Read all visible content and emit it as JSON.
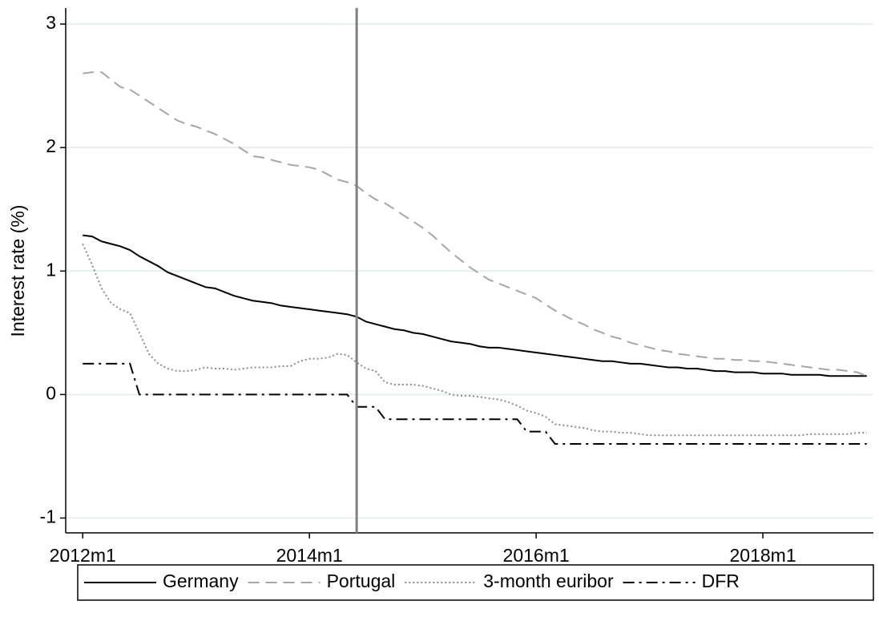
{
  "chart_data": {
    "type": "line",
    "y_label": "Interest rate (%)",
    "x": [
      624,
      625,
      626,
      627,
      628,
      629,
      630,
      631,
      632,
      633,
      634,
      635,
      636,
      637,
      638,
      639,
      640,
      641,
      642,
      643,
      644,
      645,
      646,
      647,
      648,
      649,
      650,
      651,
      652,
      653,
      654,
      655,
      656,
      657,
      658,
      659,
      660,
      661,
      662,
      663,
      664,
      665,
      666,
      667,
      668,
      669,
      670,
      671,
      672,
      673,
      674,
      675,
      676,
      677,
      678,
      679,
      680,
      681,
      682,
      683,
      684,
      685,
      686,
      687,
      688,
      689,
      690,
      691,
      692,
      693,
      694,
      695,
      696,
      697,
      698,
      699,
      700,
      701,
      702,
      703,
      704,
      705,
      706,
      707
    ],
    "xlim": [
      622.2,
      707.7
    ],
    "xticks": [
      {
        "value": 624,
        "label": "2012m1"
      },
      {
        "value": 648,
        "label": "2014m1"
      },
      {
        "value": 672,
        "label": "2016m1"
      },
      {
        "value": 696,
        "label": "2018m1"
      }
    ],
    "ylim": [
      -1.12,
      3.13
    ],
    "yticks": [
      -1,
      0,
      1,
      2,
      3
    ],
    "grid": true,
    "vline": 653,
    "vline_color": "#808080",
    "series": [
      {
        "name": "Germany",
        "color": "#000000",
        "style": "solid",
        "values": [
          1.29,
          1.28,
          1.24,
          1.22,
          1.2,
          1.17,
          1.12,
          1.08,
          1.04,
          0.99,
          0.96,
          0.93,
          0.9,
          0.87,
          0.86,
          0.83,
          0.8,
          0.78,
          0.76,
          0.75,
          0.74,
          0.72,
          0.71,
          0.7,
          0.69,
          0.68,
          0.67,
          0.66,
          0.65,
          0.63,
          0.59,
          0.57,
          0.55,
          0.53,
          0.52,
          0.5,
          0.49,
          0.47,
          0.45,
          0.43,
          0.42,
          0.41,
          0.39,
          0.38,
          0.38,
          0.37,
          0.36,
          0.35,
          0.34,
          0.33,
          0.32,
          0.31,
          0.3,
          0.29,
          0.28,
          0.27,
          0.27,
          0.26,
          0.25,
          0.25,
          0.24,
          0.23,
          0.22,
          0.22,
          0.21,
          0.21,
          0.2,
          0.19,
          0.19,
          0.18,
          0.18,
          0.18,
          0.17,
          0.17,
          0.17,
          0.16,
          0.16,
          0.16,
          0.16,
          0.15,
          0.15,
          0.15,
          0.15,
          0.15
        ]
      },
      {
        "name": "Portugal",
        "color": "#a6a6a6",
        "style": "dash",
        "values": [
          2.6,
          2.61,
          2.61,
          2.55,
          2.49,
          2.47,
          2.42,
          2.37,
          2.32,
          2.27,
          2.22,
          2.19,
          2.17,
          2.14,
          2.11,
          2.07,
          2.03,
          1.98,
          1.93,
          1.92,
          1.9,
          1.88,
          1.86,
          1.85,
          1.84,
          1.82,
          1.78,
          1.74,
          1.72,
          1.69,
          1.63,
          1.58,
          1.55,
          1.5,
          1.45,
          1.4,
          1.35,
          1.29,
          1.22,
          1.15,
          1.09,
          1.03,
          0.98,
          0.93,
          0.9,
          0.87,
          0.84,
          0.81,
          0.78,
          0.73,
          0.68,
          0.64,
          0.6,
          0.57,
          0.53,
          0.5,
          0.47,
          0.45,
          0.42,
          0.4,
          0.38,
          0.36,
          0.35,
          0.33,
          0.32,
          0.31,
          0.3,
          0.29,
          0.29,
          0.28,
          0.28,
          0.27,
          0.27,
          0.26,
          0.25,
          0.24,
          0.23,
          0.22,
          0.21,
          0.2,
          0.2,
          0.19,
          0.18,
          0.15
        ]
      },
      {
        "name": "3-month euribor",
        "color": "#8c8c8c",
        "style": "dot",
        "values": [
          1.22,
          1.05,
          0.86,
          0.74,
          0.69,
          0.66,
          0.5,
          0.33,
          0.25,
          0.21,
          0.19,
          0.19,
          0.2,
          0.22,
          0.21,
          0.21,
          0.2,
          0.21,
          0.22,
          0.22,
          0.22,
          0.23,
          0.23,
          0.27,
          0.29,
          0.29,
          0.3,
          0.33,
          0.32,
          0.26,
          0.21,
          0.19,
          0.1,
          0.08,
          0.08,
          0.08,
          0.07,
          0.05,
          0.03,
          0.0,
          -0.01,
          -0.01,
          -0.02,
          -0.03,
          -0.04,
          -0.06,
          -0.09,
          -0.13,
          -0.15,
          -0.18,
          -0.24,
          -0.25,
          -0.26,
          -0.27,
          -0.29,
          -0.3,
          -0.3,
          -0.31,
          -0.31,
          -0.32,
          -0.33,
          -0.33,
          -0.33,
          -0.33,
          -0.33,
          -0.33,
          -0.33,
          -0.33,
          -0.33,
          -0.33,
          -0.33,
          -0.33,
          -0.33,
          -0.33,
          -0.33,
          -0.33,
          -0.33,
          -0.32,
          -0.32,
          -0.32,
          -0.32,
          -0.32,
          -0.31,
          -0.31
        ]
      },
      {
        "name": "DFR",
        "color": "#000000",
        "style": "dashdot",
        "values": [
          0.25,
          0.25,
          0.25,
          0.25,
          0.25,
          0.25,
          0,
          0,
          0,
          0,
          0,
          0,
          0,
          0,
          0,
          0,
          0,
          0,
          0,
          0,
          0,
          0,
          0,
          0,
          0,
          0,
          0,
          0,
          0,
          -0.1,
          -0.1,
          -0.1,
          -0.2,
          -0.2,
          -0.2,
          -0.2,
          -0.2,
          -0.2,
          -0.2,
          -0.2,
          -0.2,
          -0.2,
          -0.2,
          -0.2,
          -0.2,
          -0.2,
          -0.2,
          -0.3,
          -0.3,
          -0.3,
          -0.4,
          -0.4,
          -0.4,
          -0.4,
          -0.4,
          -0.4,
          -0.4,
          -0.4,
          -0.4,
          -0.4,
          -0.4,
          -0.4,
          -0.4,
          -0.4,
          -0.4,
          -0.4,
          -0.4,
          -0.4,
          -0.4,
          -0.4,
          -0.4,
          -0.4,
          -0.4,
          -0.4,
          -0.4,
          -0.4,
          -0.4,
          -0.4,
          -0.4,
          -0.4,
          -0.4,
          -0.4,
          -0.4,
          -0.4
        ]
      }
    ]
  }
}
